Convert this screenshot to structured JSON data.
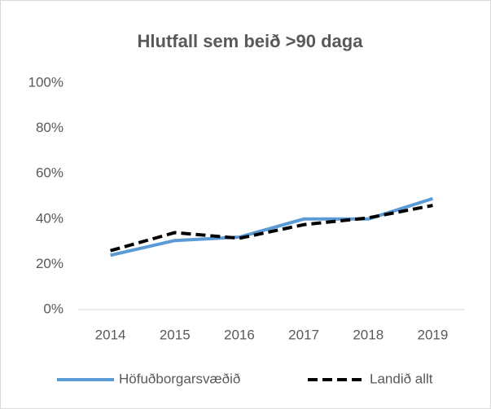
{
  "chart_data": {
    "type": "line",
    "title": "Hlutfall sem beið >90 daga",
    "categories": [
      "2014",
      "2015",
      "2016",
      "2017",
      "2018",
      "2019"
    ],
    "series": [
      {
        "name": "Höfuðborgarsvæðið",
        "color": "#5b9bd5",
        "dash": "solid",
        "values": [
          24,
          30.5,
          32,
          40,
          40,
          49
        ]
      },
      {
        "name": "Landið allt",
        "color": "#000000",
        "dash": "dashed",
        "values": [
          26,
          34,
          31.5,
          37.5,
          40.5,
          46
        ]
      }
    ],
    "ylim": [
      0,
      100
    ],
    "yticks": [
      {
        "value": 0,
        "label": "0%"
      },
      {
        "value": 20,
        "label": "20%"
      },
      {
        "value": 40,
        "label": "40%"
      },
      {
        "value": 60,
        "label": "60%"
      },
      {
        "value": 80,
        "label": "80%"
      },
      {
        "value": 100,
        "label": "100%"
      }
    ],
    "grid": false,
    "legend": "bottom"
  }
}
